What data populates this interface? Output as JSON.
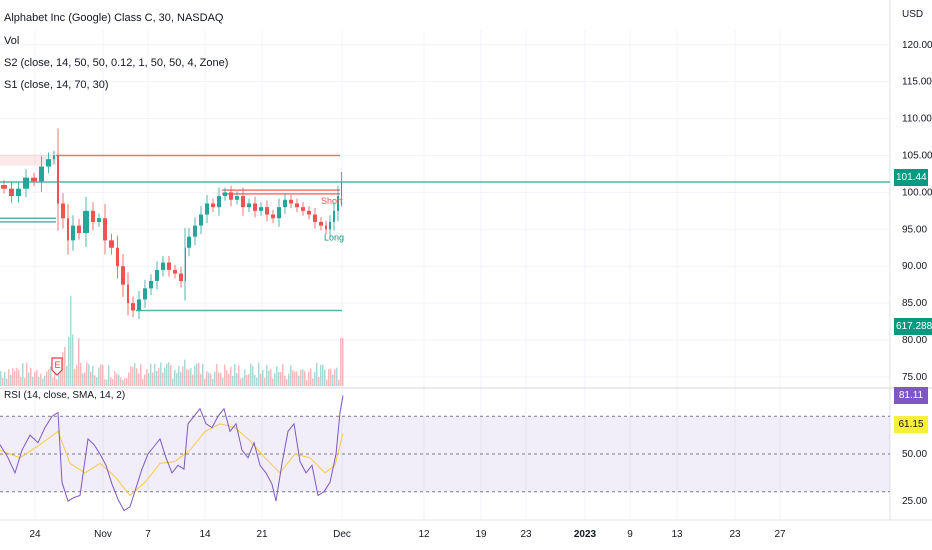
{
  "header": {
    "symbol_line": "Alphabet Inc (Google) Class C, 30, NASDAQ",
    "vol_label": "Vol",
    "s2_label": "S2 (close, 14, 50, 50, 0.12, 1, 50, 50, 4, Zone)",
    "s1_label": "S1 (close, 14, 70, 30)",
    "rsi_label": "RSI (14, close, SMA, 14, 2)",
    "currency": "USD"
  },
  "badges": {
    "last_price": "101.44",
    "volume": "617.288K",
    "rsi_value": "81.11",
    "rsi_ma_value": "61.15",
    "price_color": "#089981",
    "rsi_color": "#7e57c2",
    "rsi_ma_color": "#f7ef3c"
  },
  "annotations": {
    "short_label": "Short",
    "long_label": "Long",
    "earnings_marker": "E"
  },
  "chart_data": {
    "type": "line",
    "price_axis": {
      "ticks": [
        "120.00",
        "115.00",
        "110.00",
        "105.00",
        "100.00",
        "95.00",
        "90.00",
        "85.00",
        "80.00",
        "75.00"
      ],
      "ylim": [
        73.5,
        122
      ]
    },
    "rsi_axis": {
      "ticks": [
        "50.00",
        "25.00"
      ],
      "ylim": [
        15,
        85
      ],
      "bands": [
        70,
        50,
        30
      ]
    },
    "x_ticks": [
      "24",
      "Nov",
      "7",
      "14",
      "21",
      "Dec",
      "12",
      "19",
      "23",
      "2023",
      "9",
      "13",
      "23",
      "27"
    ],
    "price_series": [
      {
        "x": 0,
        "y": 101.0
      },
      {
        "x": 8,
        "y": 100.5
      },
      {
        "x": 15,
        "y": 99.5
      },
      {
        "x": 22,
        "y": 100.5
      },
      {
        "x": 30,
        "y": 102.0
      },
      {
        "x": 38,
        "y": 101.5
      },
      {
        "x": 45,
        "y": 103.5
      },
      {
        "x": 52,
        "y": 104.5
      },
      {
        "x": 56,
        "y": 105.0
      },
      {
        "x": 60,
        "y": 98.5
      },
      {
        "x": 66,
        "y": 96.5
      },
      {
        "x": 70,
        "y": 93.5
      },
      {
        "x": 76,
        "y": 95.5
      },
      {
        "x": 82,
        "y": 94.5
      },
      {
        "x": 90,
        "y": 97.5
      },
      {
        "x": 96,
        "y": 96.0
      },
      {
        "x": 102,
        "y": 96.5
      },
      {
        "x": 108,
        "y": 93.5
      },
      {
        "x": 115,
        "y": 92.5
      },
      {
        "x": 120,
        "y": 90.0
      },
      {
        "x": 126,
        "y": 87.5
      },
      {
        "x": 130,
        "y": 85.0
      },
      {
        "x": 136,
        "y": 84.0
      },
      {
        "x": 142,
        "y": 85.5
      },
      {
        "x": 148,
        "y": 87.0
      },
      {
        "x": 154,
        "y": 88.0
      },
      {
        "x": 160,
        "y": 89.5
      },
      {
        "x": 166,
        "y": 90.5
      },
      {
        "x": 172,
        "y": 89.5
      },
      {
        "x": 178,
        "y": 89.0
      },
      {
        "x": 184,
        "y": 88.0
      },
      {
        "x": 186,
        "y": 92.5
      },
      {
        "x": 192,
        "y": 94.0
      },
      {
        "x": 198,
        "y": 95.5
      },
      {
        "x": 204,
        "y": 97.0
      },
      {
        "x": 210,
        "y": 98.5
      },
      {
        "x": 216,
        "y": 98.0
      },
      {
        "x": 222,
        "y": 99.5
      },
      {
        "x": 228,
        "y": 100.0
      },
      {
        "x": 234,
        "y": 99.0
      },
      {
        "x": 240,
        "y": 99.5
      },
      {
        "x": 246,
        "y": 98.0
      },
      {
        "x": 252,
        "y": 98.5
      },
      {
        "x": 258,
        "y": 97.5
      },
      {
        "x": 264,
        "y": 98.0
      },
      {
        "x": 270,
        "y": 97.0
      },
      {
        "x": 276,
        "y": 96.5
      },
      {
        "x": 282,
        "y": 98.0
      },
      {
        "x": 288,
        "y": 99.0
      },
      {
        "x": 294,
        "y": 98.5
      },
      {
        "x": 300,
        "y": 98.0
      },
      {
        "x": 306,
        "y": 97.5
      },
      {
        "x": 312,
        "y": 97.0
      },
      {
        "x": 318,
        "y": 96.0
      },
      {
        "x": 324,
        "y": 95.5
      },
      {
        "x": 328,
        "y": 95.0
      },
      {
        "x": 332,
        "y": 96.0
      },
      {
        "x": 336,
        "y": 97.5
      },
      {
        "x": 340,
        "y": 99.5
      },
      {
        "x": 343,
        "y": 101.4
      }
    ],
    "levels": [
      {
        "price": 105.0,
        "from": 56,
        "to": 340,
        "color": "#ef5350"
      },
      {
        "price": 101.4,
        "from": 0,
        "to": 890,
        "color": "#26a69a"
      },
      {
        "price": 100.3,
        "from": 222,
        "to": 340,
        "color": "#ef5350"
      },
      {
        "price": 99.8,
        "from": 222,
        "to": 340,
        "color": "#ef5350"
      },
      {
        "price": 96.5,
        "from": 0,
        "to": 56,
        "color": "#26a69a"
      },
      {
        "price": 96.0,
        "from": 0,
        "to": 56,
        "color": "#26a69a"
      },
      {
        "price": 84.0,
        "from": 136,
        "to": 342,
        "color": "#26a69a"
      }
    ],
    "volume": [],
    "rsi_series": [
      {
        "x": 0,
        "y": 55
      },
      {
        "x": 8,
        "y": 48
      },
      {
        "x": 15,
        "y": 40
      },
      {
        "x": 22,
        "y": 52
      },
      {
        "x": 30,
        "y": 60
      },
      {
        "x": 38,
        "y": 56
      },
      {
        "x": 45,
        "y": 64
      },
      {
        "x": 52,
        "y": 70
      },
      {
        "x": 58,
        "y": 72
      },
      {
        "x": 62,
        "y": 35
      },
      {
        "x": 68,
        "y": 25
      },
      {
        "x": 74,
        "y": 27
      },
      {
        "x": 80,
        "y": 28
      },
      {
        "x": 88,
        "y": 58
      },
      {
        "x": 94,
        "y": 55
      },
      {
        "x": 100,
        "y": 50
      },
      {
        "x": 106,
        "y": 44
      },
      {
        "x": 112,
        "y": 34
      },
      {
        "x": 118,
        "y": 26
      },
      {
        "x": 124,
        "y": 20
      },
      {
        "x": 130,
        "y": 22
      },
      {
        "x": 136,
        "y": 32
      },
      {
        "x": 142,
        "y": 42
      },
      {
        "x": 148,
        "y": 50
      },
      {
        "x": 154,
        "y": 54
      },
      {
        "x": 160,
        "y": 58
      },
      {
        "x": 166,
        "y": 48
      },
      {
        "x": 172,
        "y": 40
      },
      {
        "x": 178,
        "y": 44
      },
      {
        "x": 184,
        "y": 42
      },
      {
        "x": 188,
        "y": 66
      },
      {
        "x": 194,
        "y": 70
      },
      {
        "x": 200,
        "y": 74
      },
      {
        "x": 206,
        "y": 66
      },
      {
        "x": 212,
        "y": 64
      },
      {
        "x": 218,
        "y": 70
      },
      {
        "x": 224,
        "y": 74
      },
      {
        "x": 230,
        "y": 62
      },
      {
        "x": 236,
        "y": 66
      },
      {
        "x": 242,
        "y": 52
      },
      {
        "x": 248,
        "y": 48
      },
      {
        "x": 254,
        "y": 56
      },
      {
        "x": 260,
        "y": 44
      },
      {
        "x": 266,
        "y": 40
      },
      {
        "x": 272,
        "y": 34
      },
      {
        "x": 276,
        "y": 25
      },
      {
        "x": 282,
        "y": 45
      },
      {
        "x": 288,
        "y": 62
      },
      {
        "x": 294,
        "y": 66
      },
      {
        "x": 300,
        "y": 46
      },
      {
        "x": 306,
        "y": 40
      },
      {
        "x": 312,
        "y": 44
      },
      {
        "x": 318,
        "y": 28
      },
      {
        "x": 324,
        "y": 30
      },
      {
        "x": 330,
        "y": 35
      },
      {
        "x": 336,
        "y": 50
      },
      {
        "x": 340,
        "y": 72
      },
      {
        "x": 343,
        "y": 81
      }
    ],
    "rsi_ma": [
      {
        "x": 0,
        "y": 52
      },
      {
        "x": 20,
        "y": 48
      },
      {
        "x": 40,
        "y": 55
      },
      {
        "x": 58,
        "y": 62
      },
      {
        "x": 70,
        "y": 45
      },
      {
        "x": 85,
        "y": 40
      },
      {
        "x": 100,
        "y": 45
      },
      {
        "x": 115,
        "y": 38
      },
      {
        "x": 130,
        "y": 28
      },
      {
        "x": 145,
        "y": 35
      },
      {
        "x": 160,
        "y": 45
      },
      {
        "x": 175,
        "y": 46
      },
      {
        "x": 190,
        "y": 52
      },
      {
        "x": 205,
        "y": 62
      },
      {
        "x": 220,
        "y": 66
      },
      {
        "x": 235,
        "y": 64
      },
      {
        "x": 250,
        "y": 57
      },
      {
        "x": 265,
        "y": 48
      },
      {
        "x": 280,
        "y": 40
      },
      {
        "x": 295,
        "y": 50
      },
      {
        "x": 310,
        "y": 48
      },
      {
        "x": 325,
        "y": 40
      },
      {
        "x": 335,
        "y": 44
      },
      {
        "x": 343,
        "y": 61
      }
    ]
  }
}
